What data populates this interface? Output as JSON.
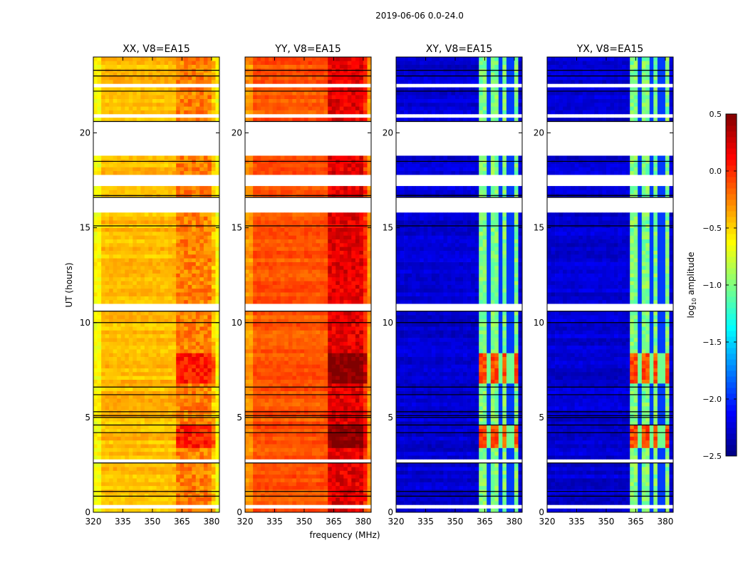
{
  "chart_data": {
    "type": "heatmap",
    "suptitle": "2019-06-06 0.0-24.0",
    "xlabel": "frequency (MHz)",
    "ylabel": "UT (hours)",
    "xlim": [
      320,
      384
    ],
    "ylim": [
      0,
      24
    ],
    "xticks": [
      "320",
      "335",
      "350",
      "365",
      "380"
    ],
    "yticks": [
      "0",
      "5",
      "10",
      "15",
      "20"
    ],
    "panels": [
      {
        "title": "XX, V8=EA15",
        "base": -0.42,
        "band": -0.25,
        "band_gaps": false
      },
      {
        "title": "YY, V8=EA15",
        "base": -0.12,
        "band": 0.2,
        "band_gaps": false
      },
      {
        "title": "XY, V8=EA15",
        "base": -2.25,
        "band": -1.0,
        "band_gaps": true
      },
      {
        "title": "YX, V8=EA15",
        "base": -2.25,
        "band": -1.0,
        "band_gaps": true
      }
    ],
    "band_mhz": [
      362,
      382
    ],
    "band_gap_channels_mhz": [
      [
        366.5,
        367.5
      ],
      [
        372.5,
        373.5
      ],
      [
        377.5,
        378.5
      ]
    ],
    "strong_periods_ut": [
      [
        3.3,
        4.5
      ],
      [
        6.8,
        8.3
      ]
    ],
    "flagged_ut": [
      [
        0.3,
        0.42
      ],
      [
        0.9,
        1.0
      ],
      [
        1.4,
        1.45
      ],
      [
        2.0,
        2.05
      ],
      [
        2.65,
        2.9
      ],
      [
        3.55,
        3.6
      ],
      [
        5.4,
        5.45
      ],
      [
        9.5,
        9.55
      ],
      [
        10.65,
        10.9
      ],
      [
        11.3,
        11.35
      ],
      [
        12.4,
        12.45
      ],
      [
        15.85,
        16.55
      ],
      [
        17.1,
        17.8
      ],
      [
        18.2,
        18.25
      ],
      [
        18.85,
        20.55
      ],
      [
        20.7,
        20.9
      ],
      [
        21.5,
        21.55
      ],
      [
        22.45,
        22.6
      ],
      [
        23.55,
        23.6
      ]
    ],
    "black_lines_ut": [
      0.85,
      1.1,
      2.6,
      4.2,
      4.6,
      5.0,
      5.1,
      5.3,
      6.2,
      6.6,
      10.0,
      10.6,
      15.1,
      16.6,
      16.7,
      18.5,
      20.6,
      22.2,
      23.0,
      23.3
    ],
    "colorbar": {
      "label": "log10 amplitude",
      "label_main": "log",
      "label_sub": "10",
      "label_rest": " amplitude",
      "range": [
        -2.5,
        0.5
      ],
      "ticks": [
        "0.5",
        "0.0",
        "−0.5",
        "−1.0",
        "−1.5",
        "−2.0",
        "−2.5"
      ],
      "colormap": "jet"
    }
  }
}
